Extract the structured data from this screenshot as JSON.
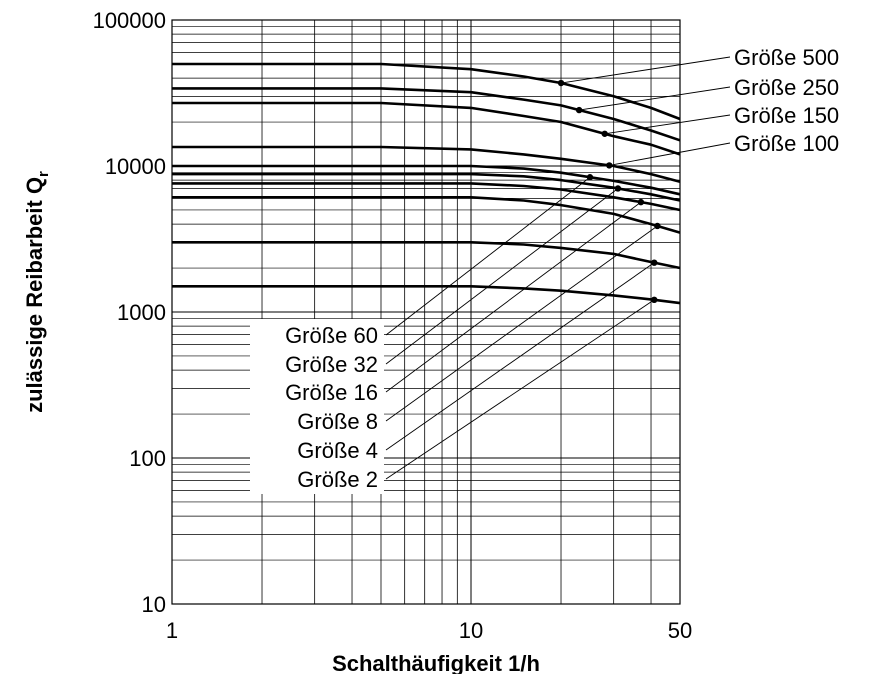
{
  "chart_data": {
    "type": "line",
    "x_scale": "log",
    "y_scale": "log",
    "xlim": [
      1,
      50
    ],
    "ylim": [
      10,
      100000
    ],
    "grid": true,
    "xlabel": "Schalthäufigkeit 1/h",
    "ylabel": "zulässige Reibarbeit Q",
    "ylabel_subscript": "r",
    "x_ticks": [
      "1",
      "10",
      "50"
    ],
    "y_ticks": [
      "100000",
      "10000",
      "1000",
      "100",
      "10"
    ],
    "series": [
      {
        "name": "Größe 500",
        "x": [
          1,
          5,
          10,
          15,
          20,
          30,
          40,
          50
        ],
        "y": [
          50000,
          50000,
          46000,
          41000,
          37000,
          30000,
          25000,
          21000
        ],
        "marker_x": 20
      },
      {
        "name": "Größe 250",
        "x": [
          1,
          5,
          10,
          15,
          20,
          30,
          40,
          50
        ],
        "y": [
          34000,
          34000,
          32000,
          28500,
          26000,
          21000,
          17500,
          15000
        ],
        "marker_x": 23
      },
      {
        "name": "Größe 150",
        "x": [
          1,
          5,
          10,
          15,
          20,
          30,
          40,
          50
        ],
        "y": [
          27000,
          27000,
          25000,
          22000,
          20000,
          16000,
          14000,
          12000
        ],
        "marker_x": 28
      },
      {
        "name": "Größe 100",
        "x": [
          1,
          5,
          10,
          15,
          20,
          30,
          40,
          50
        ],
        "y": [
          13500,
          13500,
          13000,
          12000,
          11200,
          10000,
          8800,
          7800
        ],
        "marker_x": 29
      },
      {
        "name": "Größe 60",
        "x": [
          1,
          10,
          15,
          20,
          30,
          40,
          50
        ],
        "y": [
          10000,
          10000,
          9600,
          9000,
          7900,
          7100,
          6400
        ],
        "marker_x": 25
      },
      {
        "name": "Größe 32",
        "x": [
          1,
          10,
          15,
          20,
          30,
          40,
          50
        ],
        "y": [
          8800,
          8800,
          8500,
          8000,
          7100,
          6400,
          5800
        ],
        "marker_x": 31
      },
      {
        "name": "Größe 16",
        "x": [
          1,
          10,
          15,
          20,
          30,
          40,
          50
        ],
        "y": [
          7600,
          7600,
          7300,
          6900,
          6100,
          5500,
          5000
        ],
        "marker_x": 37
      },
      {
        "name": "Größe 8",
        "x": [
          1,
          10,
          15,
          20,
          30,
          40,
          50
        ],
        "y": [
          6100,
          6100,
          5800,
          5400,
          4700,
          4000,
          3500
        ],
        "marker_x": 42
      },
      {
        "name": "Größe 4",
        "x": [
          1,
          10,
          15,
          20,
          30,
          40,
          50
        ],
        "y": [
          3000,
          3000,
          2900,
          2750,
          2500,
          2200,
          2000
        ],
        "marker_x": 41
      },
      {
        "name": "Größe 2",
        "x": [
          1,
          10,
          15,
          20,
          30,
          40,
          50
        ],
        "y": [
          1500,
          1500,
          1450,
          1400,
          1300,
          1220,
          1150
        ],
        "marker_x": 41
      }
    ],
    "labels_right": [
      "Größe 500",
      "Größe 250",
      "Größe 150",
      "Größe 100"
    ],
    "labels_left": [
      "Größe 60",
      "Größe 32",
      "Größe 16",
      "Größe 8",
      "Größe 4",
      "Größe 2"
    ]
  }
}
